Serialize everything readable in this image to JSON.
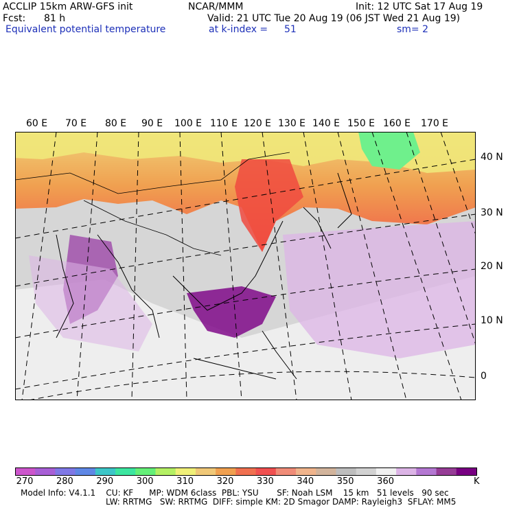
{
  "header": {
    "model_line": "ACCLIP 15km ARW-GFS init",
    "org": "NCAR/MMM",
    "init": "Init: 12 UTC Sat 17 Aug 19",
    "fcst_label": "Fcst:",
    "fcst_value": "81 h",
    "valid": "Valid: 21 UTC Tue 20 Aug 19 (06 JST Wed 21 Aug 19)",
    "field": "Equivalent potential temperature",
    "kindex": "at k-index =",
    "kindex_value": "51",
    "smooth": "sm= 2"
  },
  "map": {
    "lon_labels": [
      "60 E",
      "70 E",
      "80 E",
      "90 E",
      "100 E",
      "110 E",
      "120 E",
      "130 E",
      "140 E",
      "150 E",
      "160 E",
      "170 E"
    ],
    "lat_labels": [
      "40 N",
      "30 N",
      "20 N",
      "10 N",
      "0"
    ],
    "background_color": "#d9d9d9",
    "warm_color": "#f4524a",
    "cool_color": "#9a3fa6"
  },
  "colorbar": {
    "colors": [
      "#cc55cc",
      "#a85fd6",
      "#7f78e6",
      "#5f88e6",
      "#3cc6c8",
      "#3ce6a0",
      "#64f078",
      "#b4f064",
      "#f0f078",
      "#f0c878",
      "#f0a050",
      "#f07050",
      "#f05050",
      "#f08c78",
      "#f0b48c",
      "#d2b49c",
      "#bebebe",
      "#d2d2d2",
      "#f0f0f0",
      "#dcb4e6",
      "#b478d2",
      "#963c96",
      "#780082"
    ],
    "labels": [
      "270",
      "280",
      "290",
      "300",
      "310",
      "320",
      "330",
      "340",
      "350",
      "360"
    ],
    "unit": "K"
  },
  "footer": {
    "line1": "Model Info: V4.1.1    CU: KF      MP: WDM 6class  PBL: YSU       SF: Noah LSM    15 km   51 levels   90 sec",
    "line2": "LW: RRTMG   SW: RRTMG  DIFF: simple KM: 2D Smagor DAMP: Rayleigh3  SFLAY: MM5"
  }
}
